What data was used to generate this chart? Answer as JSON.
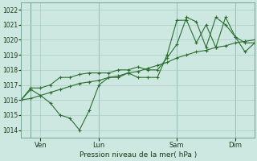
{
  "background_color": "#cce8e0",
  "grid_color": "#a8ccc4",
  "line_color": "#2d6e30",
  "xlabel": "Pression niveau de la mer( hPa )",
  "ylim": [
    1013.5,
    1022.5
  ],
  "yticks": [
    1014,
    1015,
    1016,
    1017,
    1018,
    1019,
    1020,
    1021,
    1022
  ],
  "xtick_labels": [
    "Ven",
    "Lun",
    "Sam",
    "Dim"
  ],
  "xtick_positions": [
    2,
    8,
    16,
    22
  ],
  "vline_positions": [
    1,
    8,
    16,
    22
  ],
  "xlim": [
    0,
    24
  ],
  "series": [
    {
      "x": [
        0,
        1,
        2,
        3,
        4,
        5,
        6,
        7,
        8,
        9,
        10,
        11,
        12,
        13,
        14,
        15,
        16,
        17,
        18,
        19,
        20,
        21,
        22,
        23,
        24
      ],
      "y": [
        1016.0,
        1016.1,
        1016.3,
        1016.5,
        1016.7,
        1016.9,
        1017.1,
        1017.2,
        1017.3,
        1017.5,
        1017.6,
        1017.8,
        1017.9,
        1018.1,
        1018.3,
        1018.5,
        1018.8,
        1019.0,
        1019.2,
        1019.3,
        1019.5,
        1019.6,
        1019.8,
        1019.9,
        1020.0
      ]
    },
    {
      "x": [
        0,
        1,
        2,
        3,
        4,
        5,
        6,
        7,
        8,
        9,
        10,
        11,
        12,
        13,
        14,
        15,
        16,
        17,
        18,
        19,
        20,
        21,
        22,
        23,
        24
      ],
      "y": [
        1016.0,
        1016.7,
        1016.3,
        1015.8,
        1015.0,
        1014.8,
        1014.0,
        1015.3,
        1017.0,
        1017.5,
        1017.5,
        1017.8,
        1017.5,
        1017.5,
        1017.5,
        1019.0,
        1021.3,
        1021.3,
        1019.8,
        1021.0,
        1019.5,
        1021.5,
        1020.2,
        1019.8,
        1019.8
      ]
    },
    {
      "x": [
        0,
        1,
        2,
        3,
        4,
        5,
        6,
        7,
        8,
        9,
        10,
        11,
        12,
        13,
        14,
        15,
        16,
        17,
        18,
        19,
        20,
        21,
        22,
        23,
        24
      ],
      "y": [
        1016.0,
        1016.8,
        1016.8,
        1017.0,
        1017.5,
        1017.5,
        1017.7,
        1017.8,
        1017.8,
        1017.8,
        1018.0,
        1018.0,
        1018.2,
        1018.0,
        1018.0,
        1018.8,
        1019.7,
        1021.5,
        1021.2,
        1019.5,
        1021.5,
        1021.0,
        1020.2,
        1019.2,
        1019.8
      ]
    }
  ]
}
